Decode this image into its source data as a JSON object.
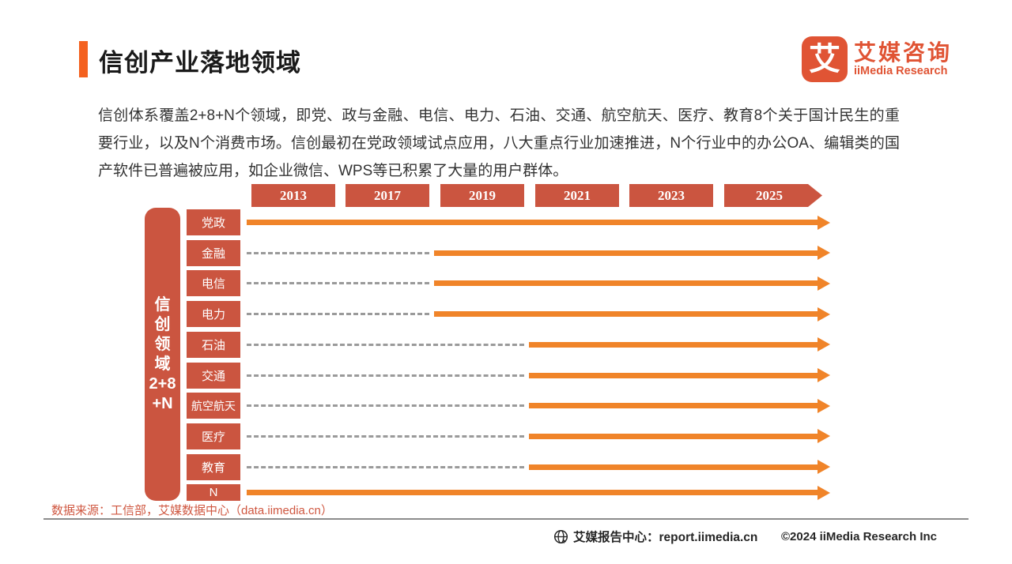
{
  "header": {
    "title": "信创产业落地领域"
  },
  "logo": {
    "glyph": "艾",
    "name_cn": "艾媒咨询",
    "name_en": "iiMedia Research"
  },
  "intro": "信创体系覆盖2+8+N个领域，即党、政与金融、电信、电力、石油、交通、航空航天、医疗、教育8个关于国计民生的重要行业，以及N个消费市场。信创最初在党政领域试点应用，八大重点行业加速推进，N个行业中的办公OA、编辑类的国产软件已普遍被应用，如企业微信、WPS等已积累了大量的用户群体。",
  "chart_data": {
    "type": "timeline",
    "title": "信创产业落地领域时间线",
    "years": [
      "2013",
      "2017",
      "2019",
      "2021",
      "2023",
      "2025"
    ],
    "axis_label": "信创领域2+8+N",
    "axis_label_lines": [
      "信",
      "创",
      "领",
      "域",
      "2+8",
      "+N"
    ],
    "rows": [
      {
        "label": "党政",
        "solid_start_year": "2013",
        "dashed_before": false
      },
      {
        "label": "金融",
        "solid_start_year": "2019",
        "dashed_before": true
      },
      {
        "label": "电信",
        "solid_start_year": "2019",
        "dashed_before": true
      },
      {
        "label": "电力",
        "solid_start_year": "2019",
        "dashed_before": true
      },
      {
        "label": "石油",
        "solid_start_year": "2021",
        "dashed_before": true
      },
      {
        "label": "交通",
        "solid_start_year": "2021",
        "dashed_before": true
      },
      {
        "label": "航空航天",
        "solid_start_year": "2021",
        "dashed_before": true
      },
      {
        "label": "医疗",
        "solid_start_year": "2021",
        "dashed_before": true
      },
      {
        "label": "教育",
        "solid_start_year": "2021",
        "dashed_before": true
      },
      {
        "label": "N",
        "solid_start_year": "2013",
        "dashed_before": false
      }
    ],
    "colors": {
      "box": "#cb5540",
      "solid_arrow": "#f08429",
      "dashed_line": "#9a9a9a",
      "accent": "#f4611f"
    },
    "legend_position": "none",
    "grid": false
  },
  "source": "数据来源：工信部，艾媒数据中心（data.iimedia.cn）",
  "footer": {
    "report_center": "艾媒报告中心：report.iimedia.cn",
    "copyright": "©2024  iiMedia Research Inc"
  }
}
